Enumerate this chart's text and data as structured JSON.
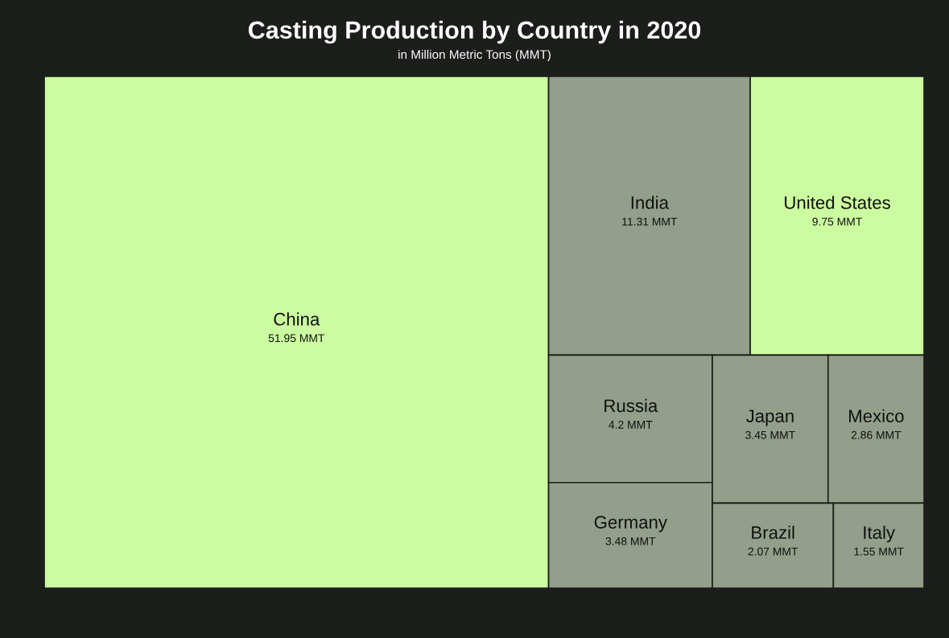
{
  "chart_data": {
    "type": "other",
    "title": "Casting Production by Country in 2020",
    "subtitle": "in Million Metric Tons (MMT)",
    "categories": [
      "China",
      "India",
      "United States",
      "Russia",
      "Germany",
      "Japan",
      "Mexico",
      "Brazil",
      "Italy"
    ],
    "values": [
      51.95,
      11.31,
      9.75,
      4.2,
      3.48,
      3.45,
      2.86,
      2.07,
      1.55
    ],
    "value_labels": [
      "51.95 MMT",
      "11.31 MMT",
      "9.75 MMT",
      "4.2 MMT",
      "3.48 MMT",
      "3.45 MMT",
      "2.86 MMT",
      "2.07 MMT",
      "1.55 MMT"
    ],
    "colors": [
      "#ccfca0",
      "#939f8a",
      "#ccfca0",
      "#939f8a",
      "#939f8a",
      "#939f8a",
      "#939f8a",
      "#939f8a",
      "#939f8a"
    ]
  }
}
